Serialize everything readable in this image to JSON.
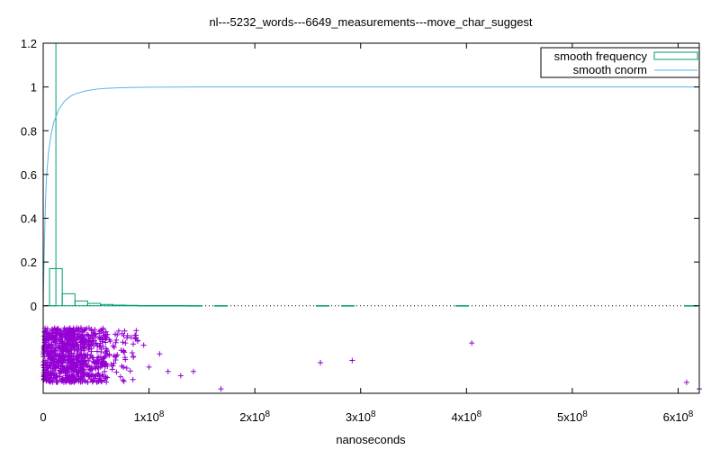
{
  "chart_data": {
    "type": "line",
    "title": "nl---5232_words---6649_measurements---move_char_suggest",
    "xlabel": "nanoseconds",
    "ylabel": "",
    "xlim": [
      0,
      620000000
    ],
    "ylim": [
      -0.4,
      1.2
    ],
    "grid": false,
    "legend_placement": "top-right",
    "y_ticks": [
      {
        "value": 0,
        "label": "0"
      },
      {
        "value": 0.2,
        "label": "0.2"
      },
      {
        "value": 0.4,
        "label": "0.4"
      },
      {
        "value": 0.6,
        "label": "0.6"
      },
      {
        "value": 0.8,
        "label": "0.8"
      },
      {
        "value": 1.0,
        "label": "1"
      },
      {
        "value": 1.2,
        "label": "1.2"
      }
    ],
    "x_ticks": [
      {
        "value": 0,
        "label": "0",
        "exp": ""
      },
      {
        "value": 100000000,
        "label": "1x10",
        "exp": "8"
      },
      {
        "value": 200000000,
        "label": "2x10",
        "exp": "8"
      },
      {
        "value": 300000000,
        "label": "3x10",
        "exp": "8"
      },
      {
        "value": 400000000,
        "label": "4x10",
        "exp": "8"
      },
      {
        "value": 500000000,
        "label": "5x10",
        "exp": "8"
      },
      {
        "value": 600000000,
        "label": "6x10",
        "exp": "8"
      }
    ],
    "series": [
      {
        "name": "smooth frequency",
        "kind": "histogram",
        "color": "#009e73",
        "bin_width": 12000000,
        "bins": [
          {
            "x": 0,
            "y": 1.2
          },
          {
            "x": 6000000,
            "y": 0.17
          },
          {
            "x": 18000000,
            "y": 0.055
          },
          {
            "x": 30000000,
            "y": 0.022
          },
          {
            "x": 42000000,
            "y": 0.011
          },
          {
            "x": 54000000,
            "y": 0.006
          },
          {
            "x": 66000000,
            "y": 0.003
          },
          {
            "x": 78000000,
            "y": 0.002
          },
          {
            "x": 90000000,
            "y": 0.001
          },
          {
            "x": 102000000,
            "y": 0.001
          },
          {
            "x": 114000000,
            "y": 0.001
          },
          {
            "x": 126000000,
            "y": 0.001
          },
          {
            "x": 138000000,
            "y": 0.0005
          },
          {
            "x": 162000000,
            "y": 0.0005
          },
          {
            "x": 258000000,
            "y": 0.0005
          },
          {
            "x": 282000000,
            "y": 0.0005
          },
          {
            "x": 390000000,
            "y": 0.0005
          },
          {
            "x": 606000000,
            "y": 0.0005
          }
        ]
      },
      {
        "name": "smooth cnorm",
        "kind": "line",
        "color": "#56b4e9",
        "x": [
          0,
          1000000,
          2000000,
          3000000,
          5000000,
          7000000,
          10000000,
          15000000,
          20000000,
          25000000,
          30000000,
          40000000,
          50000000,
          60000000,
          70000000,
          85000000,
          100000000,
          150000000,
          620000000
        ],
        "y": [
          0.0,
          0.25,
          0.45,
          0.58,
          0.7,
          0.77,
          0.84,
          0.9,
          0.935,
          0.955,
          0.968,
          0.982,
          0.99,
          0.994,
          0.996,
          0.998,
          0.999,
          1.0,
          1.0
        ]
      },
      {
        "name": "",
        "kind": "scatter",
        "color": "#9400d3",
        "jitter_y_range": [
          -0.35,
          -0.1
        ],
        "dense_segments": [
          {
            "x_from": 0,
            "x_to": 40000000,
            "count": 700
          },
          {
            "x_from": 40000000,
            "x_to": 60000000,
            "count": 180
          },
          {
            "x_from": 60000000,
            "x_to": 90000000,
            "count": 60
          }
        ],
        "points": [
          {
            "x": 95000000,
            "y": -0.18
          },
          {
            "x": 100000000,
            "y": -0.28
          },
          {
            "x": 110000000,
            "y": -0.22
          },
          {
            "x": 118000000,
            "y": -0.3
          },
          {
            "x": 130000000,
            "y": -0.32
          },
          {
            "x": 142000000,
            "y": -0.3
          },
          {
            "x": 168000000,
            "y": -0.38
          },
          {
            "x": 262000000,
            "y": -0.26
          },
          {
            "x": 292000000,
            "y": -0.25
          },
          {
            "x": 405000000,
            "y": -0.17
          },
          {
            "x": 608000000,
            "y": -0.35
          },
          {
            "x": 620000000,
            "y": -0.38
          }
        ]
      }
    ]
  }
}
